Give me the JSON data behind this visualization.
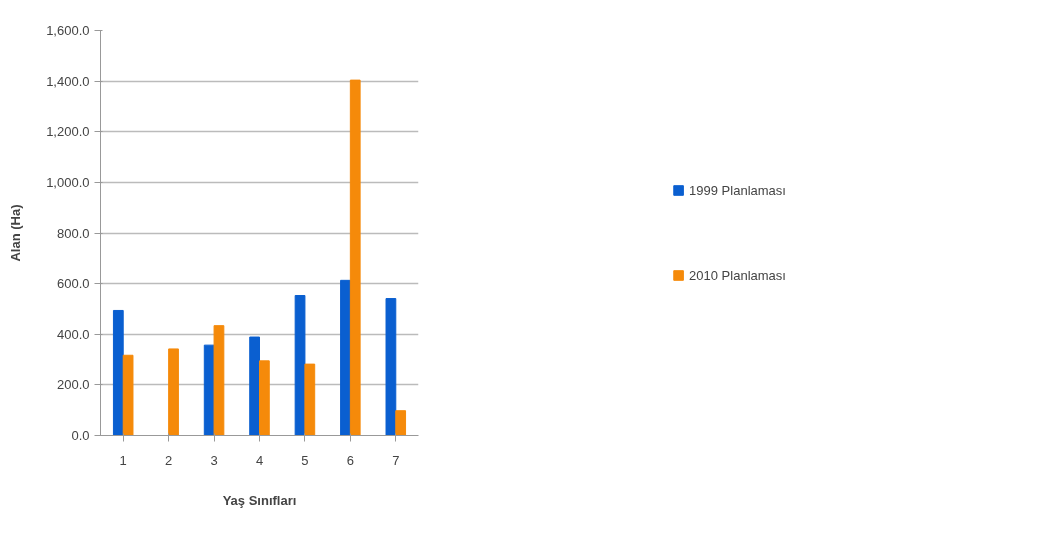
{
  "chart_data": {
    "type": "bar",
    "xlabel": "Yaş Sınıfları",
    "ylabel": "Alan (Ha)",
    "categories": [
      "1",
      "2",
      "3",
      "4",
      "5",
      "6",
      "7"
    ],
    "series": [
      {
        "name": "1999 Planlaması",
        "color": "#0a5fd0",
        "values": [
          494,
          0,
          357,
          389,
          553,
          613,
          541
        ]
      },
      {
        "name": "2010 Planlaması",
        "color": "#f58a0a",
        "values": [
          317,
          342,
          434,
          295,
          282,
          1404,
          98
        ]
      }
    ],
    "ylim": [
      0,
      1600
    ],
    "yticks": [
      {
        "value": 0,
        "label": "0.0"
      },
      {
        "value": 200,
        "label": "200.0"
      },
      {
        "value": 400,
        "label": "400.0"
      },
      {
        "value": 600,
        "label": "600.0"
      },
      {
        "value": 800,
        "label": "800.0"
      },
      {
        "value": 1000,
        "label": "1,000.0"
      },
      {
        "value": 1200,
        "label": "1,200.0"
      },
      {
        "value": 1400,
        "label": "1,400.0"
      },
      {
        "value": 1600,
        "label": "1,600.0"
      }
    ],
    "grid": "y",
    "legend": "right"
  }
}
